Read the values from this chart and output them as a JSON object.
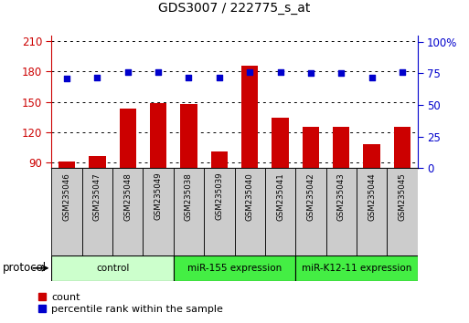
{
  "title": "GDS3007 / 222775_s_at",
  "samples": [
    "GSM235046",
    "GSM235047",
    "GSM235048",
    "GSM235049",
    "GSM235038",
    "GSM235039",
    "GSM235040",
    "GSM235041",
    "GSM235042",
    "GSM235043",
    "GSM235044",
    "GSM235045"
  ],
  "counts": [
    91,
    97,
    143,
    149,
    148,
    101,
    185,
    134,
    125,
    125,
    108,
    125
  ],
  "percentile_ranks": [
    71,
    72,
    76,
    76,
    72,
    72,
    76,
    76,
    75,
    75,
    72,
    76
  ],
  "groups": [
    {
      "label": "control",
      "start": 0,
      "end": 4,
      "color": "#ccffcc"
    },
    {
      "label": "miR-155 expression",
      "start": 4,
      "end": 8,
      "color": "#44ee44"
    },
    {
      "label": "miR-K12-11 expression",
      "start": 8,
      "end": 12,
      "color": "#44ee44"
    }
  ],
  "ylim_left": [
    85,
    215
  ],
  "ylim_right": [
    0,
    105
  ],
  "yticks_left": [
    90,
    120,
    150,
    180,
    210
  ],
  "yticks_right": [
    0,
    25,
    50,
    75,
    100
  ],
  "bar_color": "#cc0000",
  "dot_color": "#0000cc",
  "bar_width": 0.55,
  "background_color": "#ffffff",
  "legend_items": [
    "count",
    "percentile rank within the sample"
  ],
  "label_box_color": "#cccccc",
  "ytick_label_left_color": "#cc0000",
  "ytick_label_right_color": "#0000cc"
}
